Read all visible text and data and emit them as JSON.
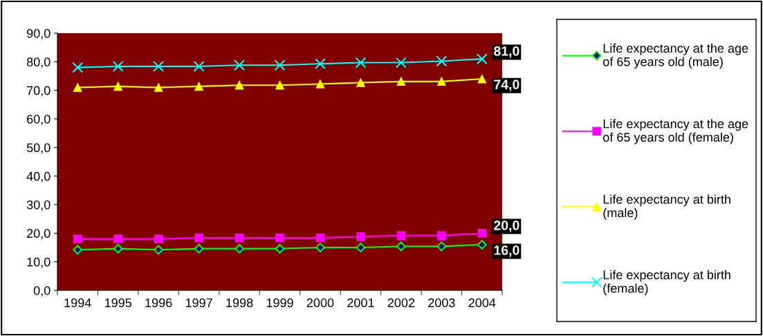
{
  "chart_data": {
    "type": "line",
    "categories": [
      "1994",
      "1995",
      "1996",
      "1997",
      "1998",
      "1999",
      "2000",
      "2001",
      "2002",
      "2003",
      "2004"
    ],
    "series": [
      {
        "name": "Life expectancy at the age of 65 years old (male)",
        "color": "#00ff00",
        "marker": "diamond",
        "values": [
          14.2,
          14.6,
          14.2,
          14.6,
          14.6,
          14.6,
          15.0,
          15.0,
          15.4,
          15.4,
          16.0
        ],
        "value_labels": [
          null,
          null,
          null,
          null,
          null,
          null,
          null,
          null,
          null,
          null,
          "16,0"
        ]
      },
      {
        "name": "Life expectancy at the age of 65 years old (female)",
        "color": "#ff00ff",
        "marker": "square",
        "values": [
          18.0,
          18.0,
          18.0,
          18.4,
          18.4,
          18.4,
          18.4,
          18.8,
          19.2,
          19.2,
          20.0
        ],
        "value_labels": [
          null,
          null,
          null,
          null,
          null,
          null,
          null,
          null,
          null,
          null,
          "20,0"
        ]
      },
      {
        "name": "Life expectancy at birth (male)",
        "color": "#ffff00",
        "marker": "triangle",
        "values": [
          71.0,
          71.4,
          71.0,
          71.4,
          71.8,
          71.8,
          72.2,
          72.7,
          73.1,
          73.1,
          74.0
        ],
        "value_labels": [
          null,
          null,
          null,
          null,
          null,
          null,
          null,
          null,
          null,
          null,
          "74,0"
        ]
      },
      {
        "name": "Life expectancy at birth (female)",
        "color": "#00ffff",
        "marker": "cross",
        "values": [
          78.0,
          78.4,
          78.4,
          78.4,
          78.8,
          78.8,
          79.3,
          79.7,
          79.7,
          80.2,
          81.0
        ],
        "value_labels": [
          null,
          null,
          null,
          null,
          null,
          null,
          null,
          null,
          null,
          null,
          "81,0"
        ]
      }
    ],
    "ylim": [
      0,
      90
    ],
    "yticks": [
      {
        "value": 0,
        "label": "0,0"
      },
      {
        "value": 10,
        "label": "10,0"
      },
      {
        "value": 20,
        "label": "20,0"
      },
      {
        "value": 30,
        "label": "30,0"
      },
      {
        "value": 40,
        "label": "40,0"
      },
      {
        "value": 50,
        "label": "50,0"
      },
      {
        "value": 60,
        "label": "60,0"
      },
      {
        "value": 70,
        "label": "70,0"
      },
      {
        "value": 80,
        "label": "80,0"
      },
      {
        "value": 90,
        "label": "90,0"
      }
    ],
    "grid": false,
    "legend": "right"
  }
}
